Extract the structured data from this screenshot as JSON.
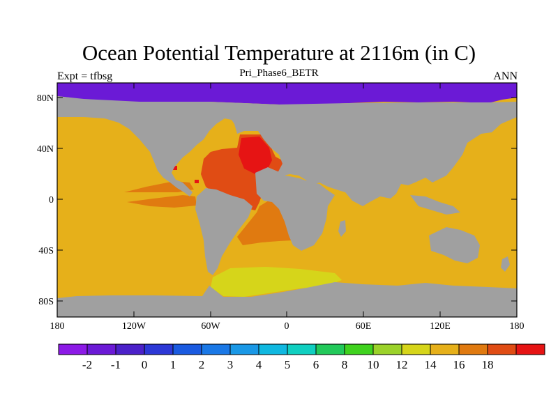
{
  "title": "Ocean Potential Temperature at 2116m (in C)",
  "subtitle": "Pri_Phase6_BETR",
  "left_label": "Expt = tfbsg",
  "right_label": "ANN",
  "map": {
    "lat_ticks": [
      "80N",
      "40N",
      "0",
      "40S",
      "80S"
    ],
    "lon_ticks": [
      "180",
      "120W",
      "60W",
      "0",
      "60E",
      "120E",
      "180"
    ],
    "land_color": "#a0a0a0"
  },
  "colorbar": {
    "labels": [
      "-2",
      "-1",
      "0",
      "1",
      "2",
      "3",
      "4",
      "5",
      "6",
      "8",
      "10",
      "12",
      "14",
      "16",
      "18"
    ],
    "colors": [
      "#8c1ae6",
      "#6b1ad6",
      "#4b21c9",
      "#2c38d6",
      "#1a5ae0",
      "#1a78e6",
      "#1a98e6",
      "#10b8e0",
      "#10cfc0",
      "#22c95a",
      "#3fd21e",
      "#9bd22a",
      "#d6d51a",
      "#e6b01a",
      "#e07a10",
      "#e04c14",
      "#e61414"
    ]
  },
  "chart_data": {
    "type": "heatmap",
    "title": "Ocean Potential Temperature at 2116m (in C)",
    "subtitle": "Pri_Phase6_BETR",
    "variable": "Ocean Potential Temperature",
    "units": "C",
    "depth": "2116m",
    "x_ticks": [
      "180",
      "120W",
      "60W",
      "0",
      "60E",
      "120E",
      "180"
    ],
    "y_ticks": [
      "80N",
      "40N",
      "0",
      "40S",
      "80S"
    ],
    "colorbar_levels": [
      -2,
      -1,
      0,
      1,
      2,
      3,
      4,
      5,
      6,
      8,
      10,
      12,
      14,
      16,
      18
    ],
    "regions": [
      {
        "name": "Arctic Ocean",
        "temperature_range": "below -2"
      },
      {
        "name": "Pacific and Indian Oceans",
        "temperature_range": "12-14"
      },
      {
        "name": "Southern Ocean (south of Africa/South America)",
        "temperature_range": "10-12"
      },
      {
        "name": "South Atlantic",
        "temperature_range": "14-16"
      },
      {
        "name": "North Atlantic",
        "temperature_range": "16-18"
      },
      {
        "name": "Western North Atlantic core",
        "temperature_range": "above 18"
      }
    ]
  }
}
